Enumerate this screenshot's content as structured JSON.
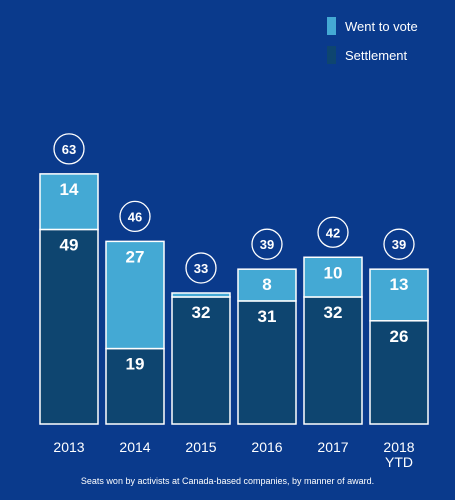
{
  "chart_data": {
    "type": "bar",
    "stacked": true,
    "categories": [
      "2013",
      "2014",
      "2015",
      "2016",
      "2017",
      "2018\nYTD"
    ],
    "series": [
      {
        "name": "Settlement",
        "values": [
          49,
          19,
          32,
          31,
          32,
          26
        ]
      },
      {
        "name": "Went to vote",
        "values": [
          14,
          27,
          1,
          8,
          10,
          13
        ]
      }
    ],
    "totals": [
      63,
      46,
      33,
      39,
      42,
      39
    ],
    "segment_labels": {
      "Settlement": [
        "49",
        "19",
        "32",
        "31",
        "32",
        "26"
      ],
      "Went to vote": [
        "14",
        "27",
        "",
        "8",
        "10",
        "13"
      ]
    },
    "ylim": [
      0,
      70
    ],
    "legend_position": "top-right",
    "colors": {
      "background": "#0a3a8c",
      "settlement": "#0e4570",
      "went_to_vote": "#44a9d4",
      "outline": "#ffffff"
    }
  },
  "legend": [
    {
      "label": "Went to vote",
      "color": "#44a9d4"
    },
    {
      "label": "Settlement",
      "color": "#0e4570"
    }
  ],
  "caption": "Seats won by activists at Canada-based companies, by manner of award."
}
